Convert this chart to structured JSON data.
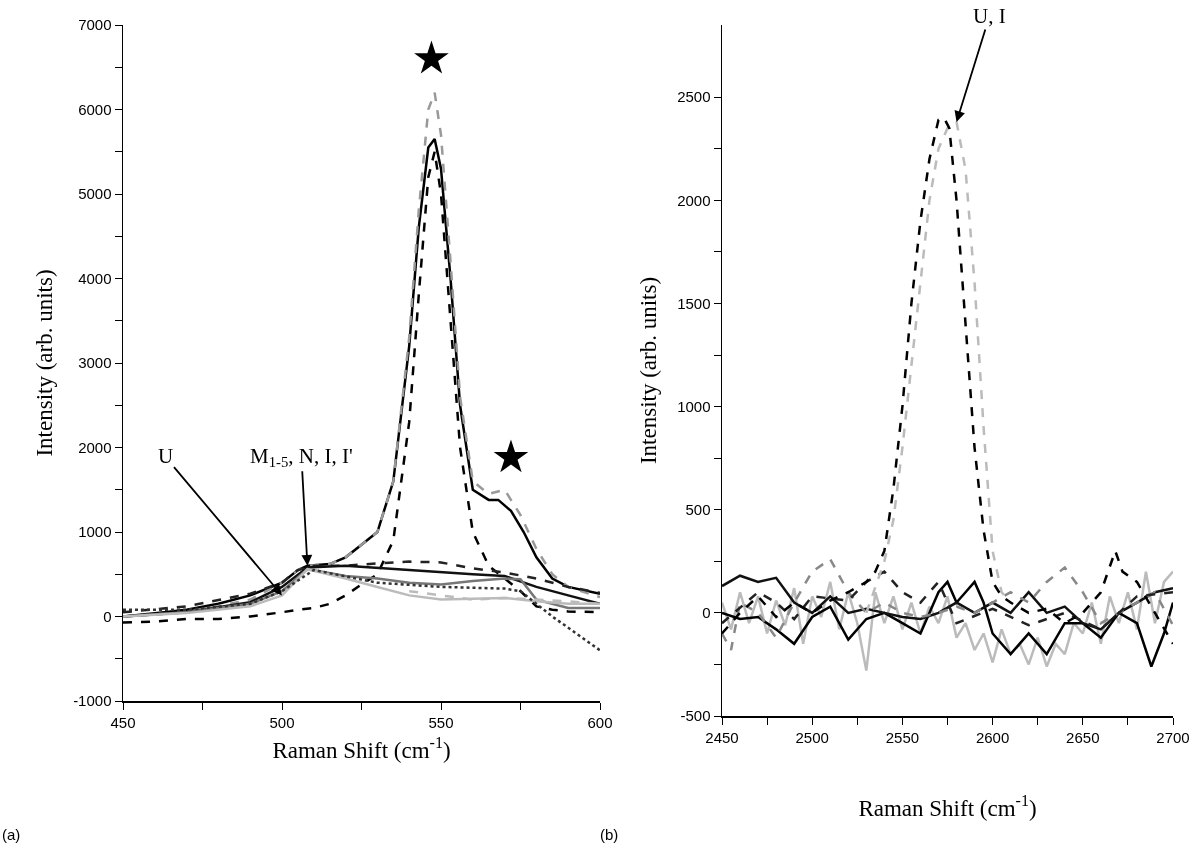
{
  "chart_data": [
    {
      "type": "line",
      "xlabel": "Raman Shift (cm$^{-1}$)",
      "ylabel": "Intensity (arb. units)",
      "xlim": [
        450,
        600
      ],
      "ylim": [
        -1000,
        7000
      ],
      "xticks": [
        450,
        {
          "value": 475,
          "label": null
        },
        500,
        {
          "value": 525,
          "label": null
        },
        550,
        {
          "value": 575,
          "label": null
        },
        600
      ],
      "yticks": [
        -1000,
        {
          "value": -500,
          "label": null
        },
        0,
        {
          "value": 500,
          "label": null
        },
        1000,
        {
          "value": 1500,
          "label": null
        },
        2000,
        {
          "value": 2500,
          "label": null
        },
        3000,
        {
          "value": 3500,
          "label": null
        },
        4000,
        {
          "value": 4500,
          "label": null
        },
        5000,
        {
          "value": 5500,
          "label": null
        },
        6000,
        {
          "value": 6500,
          "label": null
        },
        7000
      ],
      "grid": false,
      "marker": "none",
      "series": [
        {
          "color": "#000000",
          "line_style": "solid",
          "x": [
            450,
            460,
            470,
            480,
            490,
            500,
            505,
            508,
            515,
            520,
            525,
            530,
            535,
            540,
            543,
            546,
            548,
            550,
            553,
            556,
            560,
            565,
            568,
            572,
            576,
            580,
            585,
            590,
            600
          ],
          "values": [
            0,
            40,
            80,
            150,
            250,
            400,
            550,
            600,
            620,
            700,
            850,
            1000,
            1600,
            3200,
            4600,
            5550,
            5650,
            5300,
            4000,
            2500,
            1500,
            1380,
            1380,
            1250,
            1000,
            700,
            450,
            350,
            270
          ]
        },
        {
          "color": "#999999",
          "line_style": "dashed",
          "x": [
            450,
            470,
            490,
            500,
            505,
            508,
            515,
            520,
            525,
            530,
            535,
            540,
            543,
            546,
            548,
            550,
            553,
            556,
            560,
            565,
            570,
            575,
            580,
            585,
            590,
            600
          ],
          "values": [
            0,
            50,
            200,
            400,
            550,
            600,
            620,
            700,
            850,
            1000,
            1600,
            3300,
            4800,
            6000,
            6200,
            5700,
            4200,
            2600,
            1600,
            1450,
            1500,
            1200,
            800,
            500,
            350,
            230
          ]
        },
        {
          "color": "#000000",
          "line_style": "dashed",
          "x": [
            450,
            460,
            470,
            480,
            490,
            500,
            505,
            510,
            515,
            520,
            525,
            530,
            535,
            540,
            543,
            546,
            548,
            550,
            553,
            556,
            560,
            565,
            570,
            575,
            580,
            585,
            590,
            600
          ],
          "values": [
            -70,
            -60,
            -30,
            -30,
            0,
            50,
            80,
            100,
            150,
            250,
            380,
            500,
            900,
            2300,
            3800,
            5200,
            5500,
            5000,
            3500,
            2000,
            1000,
            600,
            450,
            300,
            120,
            80,
            60,
            50
          ]
        },
        {
          "color": "#222222",
          "line_style": "dashed",
          "x": [
            450,
            470,
            490,
            500,
            505,
            510,
            520,
            530,
            540,
            550,
            560,
            570,
            580,
            590,
            600
          ],
          "values": [
            50,
            120,
            270,
            400,
            550,
            600,
            600,
            630,
            650,
            640,
            570,
            520,
            450,
            350,
            280
          ]
        },
        {
          "color": "#111111",
          "line_style": "solid",
          "x": [
            450,
            470,
            490,
            500,
            508,
            520,
            540,
            560,
            570,
            580,
            590,
            600
          ],
          "values": [
            0,
            50,
            170,
            350,
            580,
            600,
            550,
            500,
            480,
            350,
            250,
            150
          ]
        },
        {
          "color": "#777777",
          "line_style": "solid",
          "x": [
            450,
            470,
            490,
            500,
            508,
            520,
            530,
            540,
            550,
            560,
            570,
            575,
            580,
            590,
            600
          ],
          "values": [
            0,
            50,
            150,
            300,
            560,
            480,
            450,
            400,
            380,
            420,
            450,
            440,
            200,
            100,
            100
          ]
        },
        {
          "color": "#bbbbbb",
          "line_style": "solid",
          "x": [
            450,
            470,
            490,
            500,
            508,
            520,
            530,
            540,
            550,
            560,
            570,
            580,
            590,
            600
          ],
          "values": [
            0,
            40,
            120,
            250,
            560,
            450,
            350,
            250,
            200,
            210,
            220,
            180,
            150,
            150
          ]
        },
        {
          "color": "#333333",
          "line_style": "dotted",
          "x": [
            450,
            470,
            490,
            500,
            510,
            530,
            550,
            570,
            575,
            585,
            600
          ],
          "values": [
            80,
            80,
            150,
            300,
            550,
            400,
            350,
            330,
            300,
            0,
            -400
          ]
        },
        {
          "color": "#bbbbbb",
          "line_style": "dashed",
          "x": [
            540,
            560,
            570,
            580,
            590,
            600
          ],
          "values": [
            300,
            200,
            220,
            200,
            180,
            150
          ]
        },
        {
          "type": "scatter",
          "marker": "star",
          "color": "#000000",
          "x": [
            547,
            572
          ],
          "values": [
            6600,
            1880
          ]
        }
      ],
      "annotations": [
        {
          "text": "U",
          "x": 500,
          "y": 250
        },
        {
          "text": "M$_{1-5}$, N, I, I'",
          "x": 508,
          "y": 600
        },
        "(a)"
      ]
    },
    {
      "type": "line",
      "xlabel": "Raman Shift (cm$^{-1}$)",
      "ylabel": "Intensity (arb. units)",
      "xlim": [
        2450,
        2700
      ],
      "ylim": [
        -500,
        2850
      ],
      "xticks": [
        2450,
        {
          "value": 2475,
          "label": null
        },
        2500,
        {
          "value": 2525,
          "label": null
        },
        2550,
        {
          "value": 2575,
          "label": null
        },
        2600,
        {
          "value": 2625,
          "label": null
        },
        2650,
        {
          "value": 2675,
          "label": null
        },
        2700
      ],
      "yticks": [
        -500,
        {
          "value": -250,
          "label": null
        },
        0,
        {
          "value": 250,
          "label": null
        },
        500,
        {
          "value": 750,
          "label": null
        },
        1000,
        {
          "value": 1250,
          "label": null
        },
        1500,
        {
          "value": 1750,
          "label": null
        },
        2000,
        {
          "value": 2250,
          "label": null
        },
        2500
      ],
      "grid": false,
      "marker": "none",
      "series": [
        {
          "color": "#bbbbbb",
          "line_style": "solid",
          "x": [
            2450,
            2455,
            2460,
            2465,
            2470,
            2475,
            2480,
            2485,
            2490,
            2495,
            2500,
            2505,
            2510,
            2515,
            2520,
            2525,
            2530,
            2535,
            2540,
            2545,
            2550,
            2555,
            2560,
            2565,
            2570,
            2575,
            2580,
            2585,
            2590,
            2595,
            2600,
            2605,
            2610,
            2615,
            2620,
            2625,
            2630,
            2635,
            2640,
            2645,
            2650,
            2655,
            2660,
            2665,
            2670,
            2675,
            2680,
            2685,
            2690,
            2695,
            2700
          ],
          "values": [
            50,
            -80,
            100,
            -50,
            80,
            -100,
            60,
            -60,
            120,
            -150,
            80,
            -20,
            150,
            -80,
            100,
            -50,
            -280,
            100,
            -50,
            80,
            -80,
            50,
            -100,
            30,
            -50,
            80,
            -120,
            -50,
            -180,
            -100,
            -240,
            -80,
            -200,
            -150,
            -250,
            -120,
            -260,
            -150,
            -200,
            -50,
            -100,
            50,
            -150,
            80,
            -50,
            100,
            -80,
            200,
            -50,
            150,
            200
          ]
        },
        {
          "color": "#000000",
          "line_style": "solid",
          "x": [
            2450,
            2460,
            2470,
            2480,
            2490,
            2500,
            2510,
            2520,
            2530,
            2540,
            2550,
            2560,
            2570,
            2575,
            2580,
            2585,
            2590,
            2595,
            2600,
            2610,
            2620,
            2630,
            2640,
            2650,
            2660,
            2670,
            2680,
            2688,
            2695,
            2700
          ],
          "values": [
            0,
            -30,
            -20,
            -80,
            -150,
            -20,
            30,
            -130,
            -30,
            0,
            -50,
            -100,
            100,
            150,
            50,
            100,
            150,
            50,
            -100,
            -200,
            -100,
            -200,
            -50,
            -50,
            -120,
            0,
            -50,
            -260,
            -100,
            50
          ]
        },
        {
          "color": "#111111",
          "line_style": "solid",
          "x": [
            2450,
            2460,
            2470,
            2480,
            2490,
            2500,
            2510,
            2520,
            2530,
            2540,
            2550,
            2560,
            2570,
            2580,
            2590,
            2600,
            2610,
            2620,
            2630,
            2640,
            2650,
            2660,
            2670,
            2680,
            2690,
            2700
          ],
          "values": [
            130,
            180,
            150,
            170,
            50,
            0,
            80,
            0,
            20,
            0,
            -20,
            -30,
            0,
            50,
            0,
            50,
            0,
            100,
            0,
            30,
            -50,
            -80,
            0,
            50,
            100,
            120
          ]
        },
        {
          "color": "#888888",
          "line_style": "dashed",
          "x": [
            2450,
            2455,
            2460,
            2470,
            2480,
            2490,
            2500,
            2510,
            2520,
            2530,
            2540,
            2550,
            2560,
            2570,
            2580,
            2590,
            2600,
            2610,
            2620,
            2630,
            2640,
            2650,
            2660,
            2670,
            2680,
            2690,
            2700
          ],
          "values": [
            -100,
            -180,
            50,
            0,
            -120,
            50,
            200,
            260,
            100,
            0,
            50,
            0,
            -20,
            0,
            30,
            0,
            50,
            100,
            50,
            150,
            220,
            100,
            -50,
            0,
            50,
            100,
            -60
          ]
        },
        {
          "color": "#222222",
          "line_style": "dashed",
          "x": [
            2450,
            2470,
            2480,
            2490,
            2500,
            2520,
            2530,
            2540,
            2550,
            2560,
            2570,
            2580,
            2600,
            2620,
            2640,
            2660,
            2680,
            2700
          ],
          "values": [
            -50,
            100,
            50,
            -30,
            80,
            60,
            150,
            200,
            100,
            50,
            150,
            -50,
            20,
            -60,
            0,
            -80,
            80,
            100
          ]
        },
        {
          "color": "#bbbbbb",
          "line_style": "dashed",
          "x": [
            2530,
            2540,
            2545,
            2550,
            2555,
            2560,
            2565,
            2570,
            2575,
            2580,
            2585,
            2590,
            2595,
            2600,
            2605,
            2610
          ],
          "values": [
            0,
            250,
            450,
            800,
            1200,
            1600,
            2000,
            2250,
            2350,
            2380,
            2150,
            1600,
            900,
            300,
            100,
            50
          ]
        },
        {
          "color": "#000000",
          "line_style": "dashed",
          "x": [
            2450,
            2460,
            2470,
            2480,
            2490,
            2500,
            2510,
            2520,
            2530,
            2535,
            2540,
            2545,
            2550,
            2555,
            2560,
            2565,
            2570,
            2573,
            2576,
            2580,
            2585,
            2590,
            2595,
            2600,
            2605,
            2610,
            2620,
            2630,
            2640,
            2650,
            2660,
            2668,
            2672,
            2680,
            2690,
            2700
          ],
          "values": [
            -100,
            0,
            80,
            -20,
            50,
            0,
            60,
            100,
            150,
            200,
            300,
            600,
            1000,
            1500,
            1900,
            2200,
            2390,
            2400,
            2350,
            2000,
            1400,
            800,
            400,
            150,
            80,
            50,
            0,
            20,
            -50,
            0,
            100,
            300,
            200,
            150,
            0,
            -150
          ]
        }
      ],
      "annotations": [
        {
          "text": "U, I",
          "x": 2580,
          "y": 2380
        },
        "(b)"
      ]
    }
  ]
}
